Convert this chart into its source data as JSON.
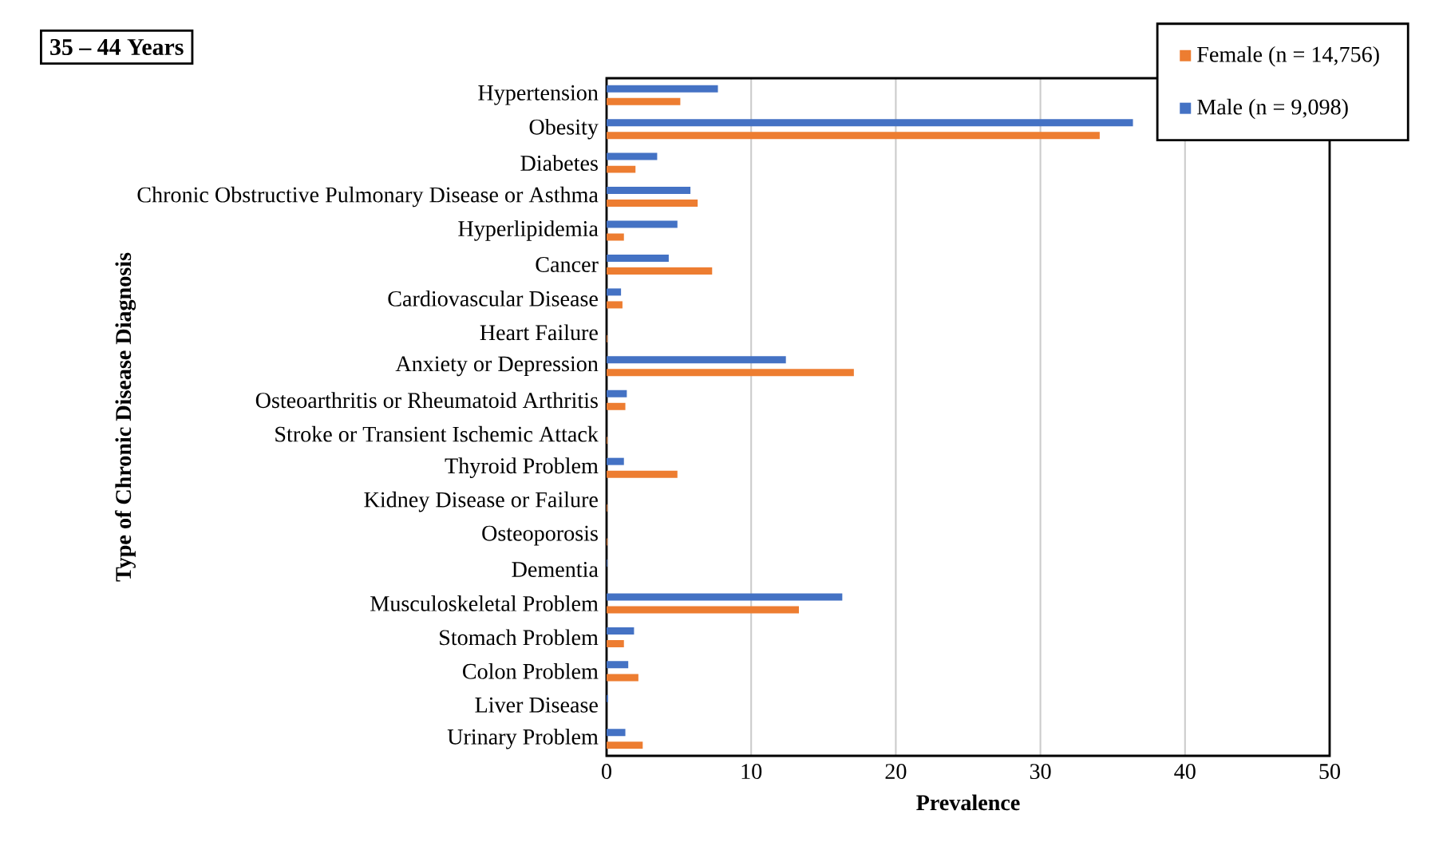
{
  "chart_data": {
    "type": "bar",
    "orientation": "horizontal",
    "title": "35 – 44 Years",
    "xlabel": "Prevalence",
    "ylabel": "Type of Chronic Disease Diagnosis",
    "categories": [
      "Hypertension",
      "Obesity",
      "Diabetes",
      "Chronic Obstructive Pulmonary Disease or Asthma",
      "Hyperlipidemia",
      "Cancer",
      "Cardiovascular Disease",
      "Heart Failure",
      "Anxiety or Depression",
      "Osteoarthritis or Rheumatoid Arthritis",
      "Stroke or Transient Ischemic Attack",
      "Thyroid Problem",
      "Kidney Disease or Failure",
      "Osteoporosis",
      "Dementia",
      "Musculoskeletal Problem",
      "Stomach Problem",
      "Colon Problem",
      "Liver Disease",
      "Urinary Problem"
    ],
    "series": [
      {
        "name": "Female (n = 14,756)",
        "color": "#ed7d31",
        "values": [
          5.1,
          34.1,
          2.0,
          6.3,
          1.2,
          7.3,
          1.1,
          0.05,
          17.1,
          1.3,
          0.05,
          4.9,
          0.05,
          0.05,
          0,
          13.3,
          1.2,
          2.2,
          0,
          2.5
        ]
      },
      {
        "name": "Male (n = 9,098)",
        "color": "#4472c4",
        "values": [
          7.7,
          36.4,
          3.5,
          5.8,
          4.9,
          4.3,
          1.0,
          0,
          12.4,
          1.4,
          0,
          1.2,
          0,
          0,
          0.05,
          16.3,
          1.9,
          1.5,
          0.1,
          1.3
        ]
      }
    ],
    "xlim": [
      0,
      50
    ],
    "xticks": [
      0,
      10,
      20,
      30,
      40,
      50
    ],
    "grid": "x",
    "legend": "top right"
  }
}
